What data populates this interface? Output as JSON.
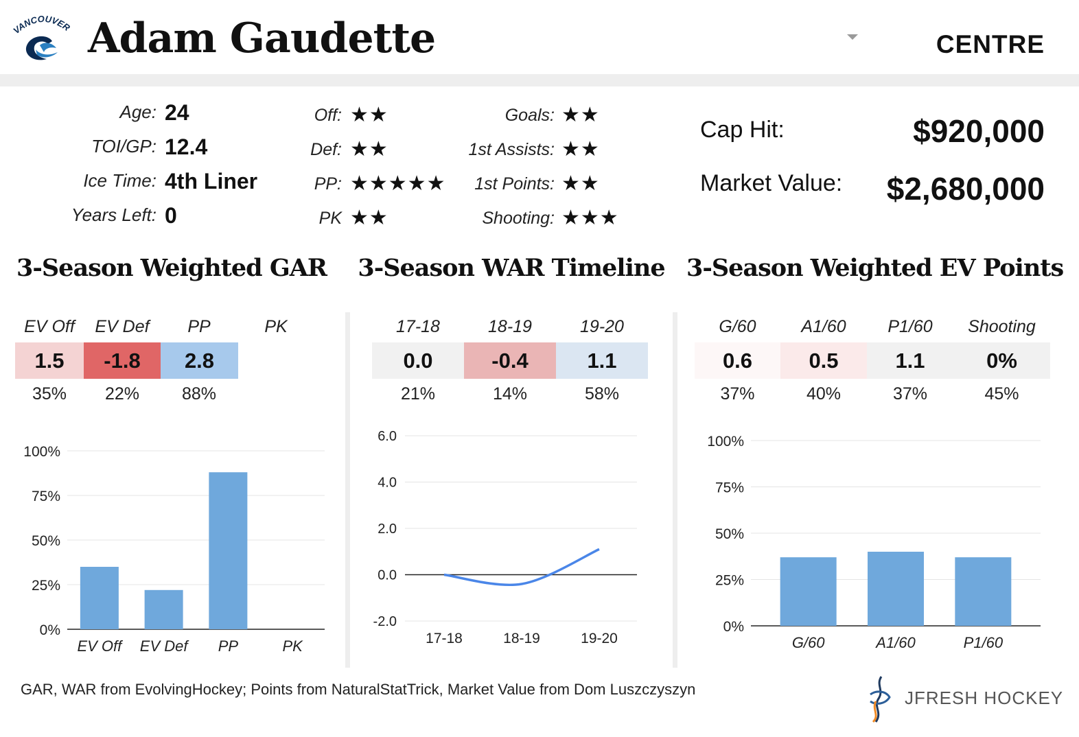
{
  "header": {
    "team_logo_text": "VANCOUVER",
    "player_name": "Adam Gaudette",
    "position": "CENTRE"
  },
  "info": [
    {
      "label": "Age:",
      "value": "24"
    },
    {
      "label": "TOI/GP:",
      "value": "12.4"
    },
    {
      "label": "Ice Time:",
      "value": "4th Liner"
    },
    {
      "label": "Years Left:",
      "value": "0"
    }
  ],
  "ratings_left": [
    {
      "label": "Off:",
      "stars": "★★"
    },
    {
      "label": "Def:",
      "stars": "★★"
    },
    {
      "label": "PP:",
      "stars": "★★★★★"
    },
    {
      "label": "PK",
      "stars": "★★"
    }
  ],
  "ratings_right": [
    {
      "label": "Goals:",
      "stars": "★★"
    },
    {
      "label": "1st Assists:",
      "stars": "★★"
    },
    {
      "label": "1st Points:",
      "stars": "★★"
    },
    {
      "label": "Shooting:",
      "stars": "★★★"
    }
  ],
  "contract": {
    "cap_hit_label": "Cap Hit:",
    "cap_hit_value": "$920,000",
    "market_value_label": "Market Value:",
    "market_value_value": "$2,680,000"
  },
  "colors": {
    "bar": "#6fa8dc",
    "line": "#4a86e8",
    "neg_strong": "#e06666",
    "neg_medium": "#eab5b5",
    "neg_light": "#f4d3d3",
    "neg_faint": "#fbeaea",
    "neutral": "#f1f1f1",
    "pos_medium": "#a7c9ec",
    "pos_light": "#dbe6f2"
  },
  "sections": {
    "gar": {
      "title": "3-Season Weighted GAR",
      "headers": [
        "EV Off",
        "EV Def",
        "PP",
        "PK"
      ],
      "values": [
        "1.5",
        "-1.8",
        "2.8",
        ""
      ],
      "cell_colors": [
        "#f4d3d3",
        "#e06666",
        "#a7c9ec",
        "#ffffff"
      ],
      "percentiles": [
        "35%",
        "22%",
        "88%",
        ""
      ]
    },
    "war": {
      "title": "3-Season WAR Timeline",
      "headers": [
        "17-18",
        "18-19",
        "19-20"
      ],
      "values": [
        "0.0",
        "-0.4",
        "1.1"
      ],
      "cell_colors": [
        "#f1f1f1",
        "#eab5b5",
        "#dbe6f2"
      ],
      "percentiles": [
        "21%",
        "14%",
        "58%"
      ]
    },
    "ev": {
      "title": "3-Season Weighted EV Points",
      "headers": [
        "G/60",
        "A1/60",
        "P1/60",
        "Shooting"
      ],
      "values": [
        "0.6",
        "0.5",
        "1.1",
        "0%"
      ],
      "cell_colors": [
        "#fdf7f7",
        "#fbeaea",
        "#f1f1f1",
        "#f1f1f1"
      ],
      "percentiles": [
        "37%",
        "40%",
        "37%",
        "45%"
      ]
    }
  },
  "chart_data": [
    {
      "type": "bar",
      "title": "3-Season Weighted GAR",
      "categories": [
        "EV Off",
        "EV Def",
        "PP",
        "PK"
      ],
      "values": [
        35,
        22,
        88,
        0
      ],
      "ylim": [
        0,
        100
      ],
      "yticks": [
        0,
        25,
        50,
        75,
        100
      ],
      "ytick_labels": [
        "0%",
        "25%",
        "50%",
        "75%",
        "100%"
      ],
      "grid": true
    },
    {
      "type": "line",
      "title": "3-Season WAR Timeline",
      "categories": [
        "17-18",
        "18-19",
        "19-20"
      ],
      "values": [
        0.0,
        -0.4,
        1.1
      ],
      "ylim": [
        -2.0,
        6.0
      ],
      "yticks": [
        -2.0,
        0.0,
        2.0,
        4.0,
        6.0
      ],
      "ytick_labels": [
        "-2.0",
        "0.0",
        "2.0",
        "4.0",
        "6.0"
      ],
      "grid": true
    },
    {
      "type": "bar",
      "title": "3-Season Weighted EV Points",
      "categories": [
        "G/60",
        "A1/60",
        "P1/60"
      ],
      "values": [
        37,
        40,
        37
      ],
      "ylim": [
        0,
        100
      ],
      "yticks": [
        0,
        25,
        50,
        75,
        100
      ],
      "ytick_labels": [
        "0%",
        "25%",
        "50%",
        "75%",
        "100%"
      ],
      "grid": true
    }
  ],
  "footer": {
    "source": "GAR, WAR from EvolvingHockey; Points from NaturalStatTrick, Market Value from Dom Luszczyszyn",
    "brand": "JFRESH HOCKEY"
  }
}
